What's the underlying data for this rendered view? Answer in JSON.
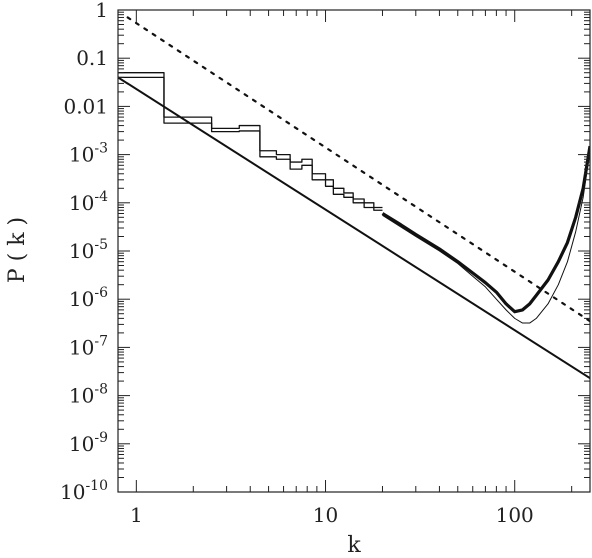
{
  "chart_data": {
    "type": "line",
    "title": "",
    "xlabel": "k",
    "ylabel": "P ( k )",
    "xscale": "log",
    "yscale": "log",
    "xlim": [
      0.8,
      250
    ],
    "ylim": [
      1e-10,
      1
    ],
    "grid": false,
    "legend": "none",
    "x_ticks": [
      {
        "value": 1,
        "label": "1"
      },
      {
        "value": 10,
        "label": "10"
      },
      {
        "value": 100,
        "label": "100"
      }
    ],
    "y_ticks": [
      {
        "value": 1,
        "base": "1",
        "exp": ""
      },
      {
        "value": 0.1,
        "base": "0.1",
        "exp": ""
      },
      {
        "value": 0.01,
        "base": "0.01",
        "exp": ""
      },
      {
        "value": 0.001,
        "base": "10",
        "exp": "-3"
      },
      {
        "value": 0.0001,
        "base": "10",
        "exp": "-4"
      },
      {
        "value": 1e-05,
        "base": "10",
        "exp": "-5"
      },
      {
        "value": 1e-06,
        "base": "10",
        "exp": "-6"
      },
      {
        "value": 1e-07,
        "base": "10",
        "exp": "-7"
      },
      {
        "value": 1e-08,
        "base": "10",
        "exp": "-8"
      },
      {
        "value": 1e-09,
        "base": "10",
        "exp": "-9"
      },
      {
        "value": 1e-10,
        "base": "10",
        "exp": "-10"
      }
    ],
    "series": [
      {
        "style": "solid",
        "stroke": "#111111",
        "width": 2,
        "x": [
          0.8,
          250
        ],
        "y": [
          0.04,
          2.3e-08
        ]
      },
      {
        "style": "dotted",
        "stroke": "#111111",
        "width": 2.2,
        "x": [
          0.9,
          250
        ],
        "y": [
          0.7,
          3.5e-07
        ]
      },
      {
        "style": "step",
        "stroke": "#111111",
        "width": 1.3,
        "x": [
          0.8,
          1.4,
          1.4,
          2.5,
          2.5,
          3.5,
          3.5,
          4.5,
          4.5,
          5.5,
          5.5,
          6.5,
          6.5,
          7.5,
          7.5,
          8.5,
          8.5,
          10,
          10,
          11,
          11,
          12.5,
          12.5,
          14,
          14,
          16,
          16,
          18,
          18,
          20
        ],
        "y": [
          0.05,
          0.05,
          0.006,
          0.006,
          0.0035,
          0.0035,
          0.004,
          0.004,
          0.0012,
          0.0012,
          0.001,
          0.001,
          0.0007,
          0.0007,
          0.0008,
          0.0008,
          0.0004,
          0.0004,
          0.0003,
          0.0003,
          0.0002,
          0.0002,
          0.00016,
          0.00016,
          0.00012,
          0.00012,
          0.0001,
          0.0001,
          8e-05,
          8e-05
        ]
      },
      {
        "style": "step",
        "stroke": "#111111",
        "width": 1.3,
        "x": [
          0.8,
          1.4,
          1.4,
          2.5,
          2.5,
          3.5,
          3.5,
          4.5,
          4.5,
          5.5,
          5.5,
          6.5,
          6.5,
          7.5,
          7.5,
          8.5,
          8.5,
          10,
          10,
          11,
          11,
          12.5,
          12.5,
          14,
          14,
          16,
          16,
          18,
          18,
          20
        ],
        "y": [
          0.04,
          0.04,
          0.0045,
          0.0045,
          0.003,
          0.003,
          0.0031,
          0.0031,
          0.0009,
          0.0009,
          0.0008,
          0.0008,
          0.0005,
          0.0005,
          0.0006,
          0.0006,
          0.0003,
          0.0003,
          0.00022,
          0.00022,
          0.00015,
          0.00015,
          0.00013,
          0.00013,
          0.0001,
          0.0001,
          8e-05,
          8e-05,
          7e-05,
          7e-05
        ]
      },
      {
        "style": "solid",
        "stroke": "#111111",
        "width": 3.2,
        "x": [
          20,
          25,
          30,
          40,
          50,
          60,
          70,
          80,
          90,
          100,
          110,
          120,
          130,
          150,
          170,
          190,
          210,
          230,
          250
        ],
        "y": [
          6e-05,
          3.5e-05,
          2.2e-05,
          1.1e-05,
          6e-06,
          3.5e-06,
          2.2e-06,
          1.4e-06,
          8e-07,
          5.5e-07,
          6e-07,
          8e-07,
          1.2e-06,
          2.5e-06,
          6e-06,
          1.5e-05,
          5e-05,
          0.0002,
          0.0015
        ]
      },
      {
        "style": "solid",
        "stroke": "#111111",
        "width": 1,
        "x": [
          20,
          30,
          40,
          50,
          60,
          70,
          80,
          90,
          100,
          110,
          120,
          130,
          150,
          170,
          190,
          210,
          230,
          250
        ],
        "y": [
          5.5e-05,
          2e-05,
          1e-05,
          5.5e-06,
          3e-06,
          1.8e-06,
          1e-06,
          6e-07,
          4e-07,
          3.2e-07,
          3.2e-07,
          4e-07,
          8e-07,
          2e-06,
          6e-06,
          2.5e-05,
          0.00013,
          0.0012
        ]
      }
    ]
  }
}
